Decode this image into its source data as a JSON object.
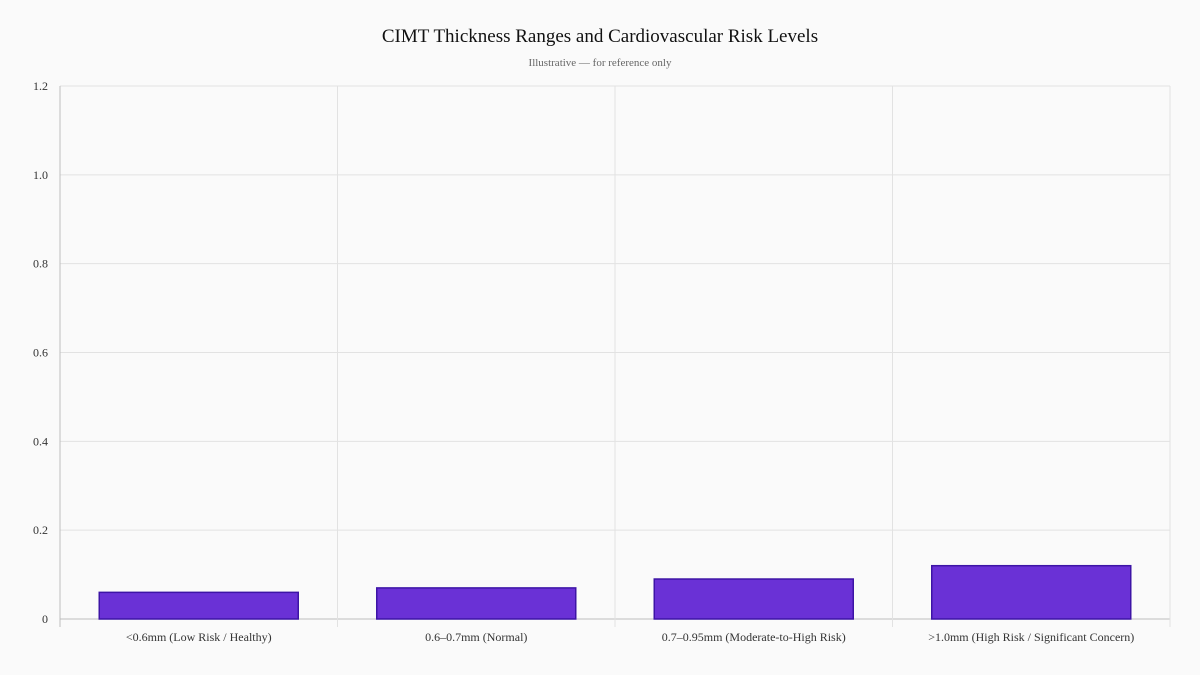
{
  "chart_data": {
    "type": "bar",
    "title": "CIMT Thickness Ranges and Cardiovascular Risk Levels",
    "subtitle": "Illustrative — for reference only",
    "xlabel": "",
    "ylabel": "",
    "categories": [
      "<0.6mm (Low Risk / Healthy)",
      "0.6–0.7mm (Normal)",
      "0.7–0.95mm (Moderate-to-High Risk)",
      ">1.0mm (High Risk / Significant Concern)"
    ],
    "values": [
      0.06,
      0.07,
      0.09,
      0.12
    ],
    "ylim": [
      0,
      1.2
    ],
    "yticks": [
      "0",
      "0.2",
      "0.4",
      "0.6",
      "0.8",
      "1.0",
      "1.2"
    ],
    "grid": true,
    "legend": "none",
    "colors": {
      "bar_fill": "#6a31d6",
      "bar_stroke": "#3d14a6",
      "grid": "#e2e2e2",
      "axis": "#bdbdbd"
    }
  }
}
